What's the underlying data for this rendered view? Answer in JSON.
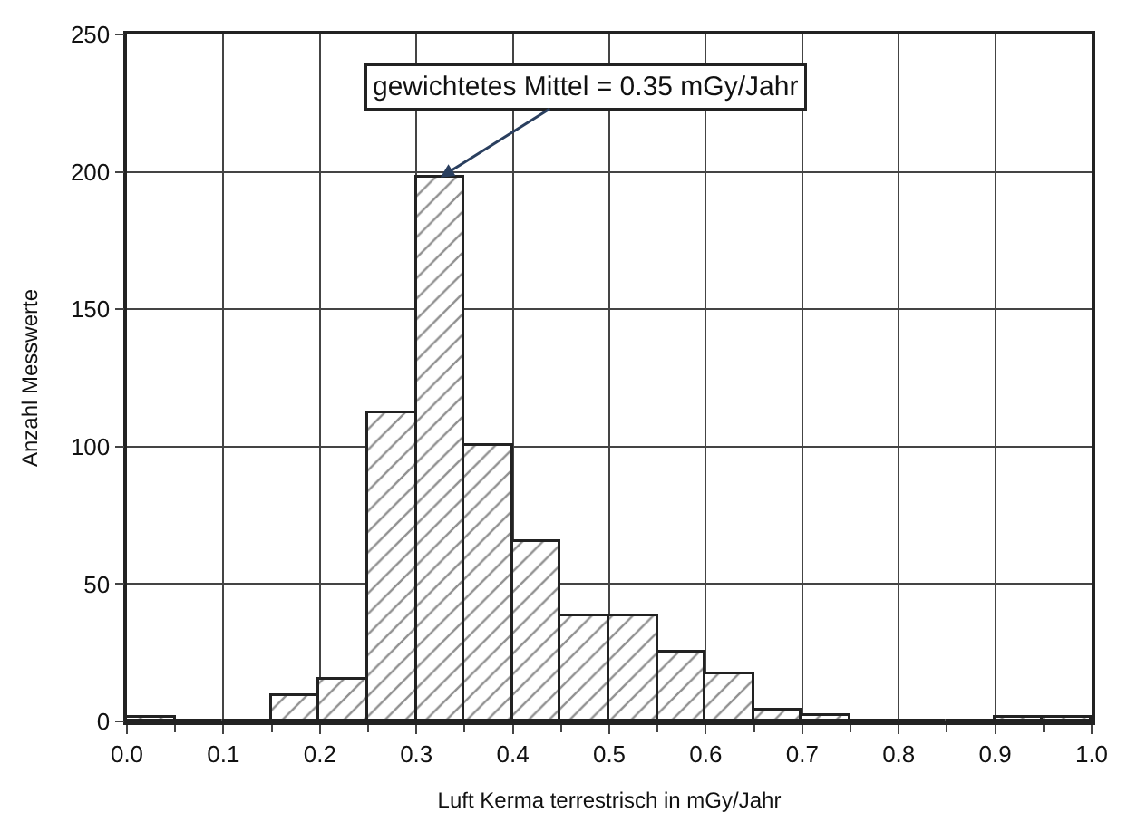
{
  "chart_data": {
    "type": "histogram",
    "xlabel": "Luft Kerma terrestrisch in mGy/Jahr",
    "ylabel": "Anzahl Messwerte",
    "bins": [
      0.0,
      0.05,
      0.1,
      0.15,
      0.2,
      0.25,
      0.3,
      0.35,
      0.4,
      0.45,
      0.5,
      0.55,
      0.6,
      0.65,
      0.7,
      0.75,
      0.8,
      0.85,
      0.9,
      0.95,
      1.0
    ],
    "values": [
      1,
      0,
      0,
      9,
      15,
      112,
      198,
      100,
      65,
      38,
      38,
      25,
      17,
      4,
      2,
      0,
      0,
      0,
      1,
      1
    ],
    "color": "#222222",
    "xlim": [
      0.0,
      1.0
    ],
    "xticks": [
      {
        "value": 0,
        "label": "0.0"
      },
      0.1,
      0.2,
      0.3,
      0.4,
      0.5,
      0.6,
      0.7,
      0.8,
      0.9,
      {
        "value": 1,
        "label": "1.0"
      }
    ],
    "ylim": [
      0,
      250
    ],
    "yticks": [
      0,
      50,
      100,
      150,
      200,
      250
    ],
    "grid": true,
    "annotations": [
      {
        "text": "gewichtetes Mittel = 0.35 mGy/Jahr",
        "x": 0.325,
        "y": 198
      }
    ]
  }
}
